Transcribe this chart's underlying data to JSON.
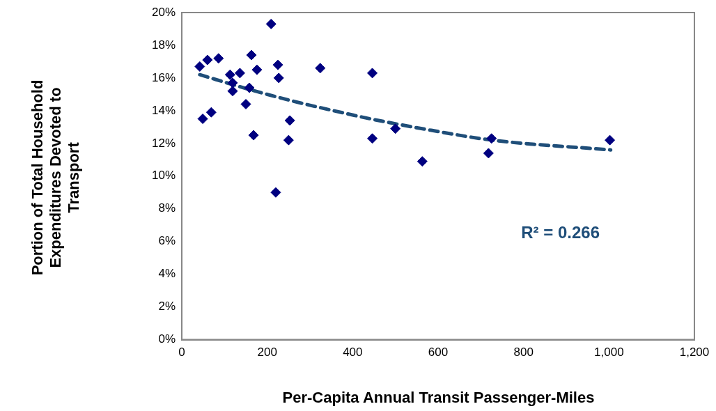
{
  "chart_data": {
    "type": "scatter",
    "xlabel": "Per-Capita Annual Transit Passenger-Miles",
    "ylabel": "Portion of Total Household Expenditures Devoted to Transport",
    "xlim": [
      0,
      1200
    ],
    "xticks": [
      0,
      200,
      400,
      600,
      800,
      {
        "value": 1000,
        "label": "1,000"
      },
      {
        "value": 1200,
        "label": "1,200"
      }
    ],
    "ylim": [
      0,
      20
    ],
    "yticks": [
      {
        "value": 0,
        "label": "0%"
      },
      {
        "value": 2,
        "label": "2%"
      },
      {
        "value": 4,
        "label": "4%"
      },
      {
        "value": 6,
        "label": "6%"
      },
      {
        "value": 8,
        "label": "8%"
      },
      {
        "value": 10,
        "label": "10%"
      },
      {
        "value": 12,
        "label": "12%"
      },
      {
        "value": 14,
        "label": "14%"
      },
      {
        "value": 16,
        "label": "16%"
      },
      {
        "value": 18,
        "label": "18%"
      },
      {
        "value": 20,
        "label": "20%"
      }
    ],
    "grid": false,
    "legend": false,
    "marker": "diamond",
    "series": [
      {
        "color": "#000080",
        "x": [
          42,
          49,
          60,
          69,
          86,
          113,
          119,
          119,
          136,
          150,
          158,
          163,
          168,
          176,
          209,
          220,
          225,
          227,
          250,
          253,
          324,
          446,
          446,
          500,
          563,
          718,
          725,
          1002
        ],
        "values": [
          16.7,
          13.5,
          17.1,
          13.9,
          17.2,
          16.2,
          15.7,
          15.2,
          16.3,
          14.4,
          15.4,
          17.4,
          12.5,
          16.5,
          19.3,
          9.0,
          16.8,
          16.0,
          12.2,
          13.4,
          16.6,
          16.3,
          12.3,
          12.9,
          10.9,
          11.4,
          12.3,
          12.2
        ]
      },
      {
        "type": "line",
        "color": "#1f4e79",
        "line_style": "dashed",
        "marker": "none",
        "x": [
          42,
          158,
          258,
          322,
          442,
          584,
          726,
          1004
        ],
        "values": [
          16.2,
          15.3,
          14.6,
          14.2,
          13.5,
          12.8,
          12.2,
          11.6
        ]
      }
    ],
    "annotations": [
      "R² = 0.266"
    ]
  }
}
